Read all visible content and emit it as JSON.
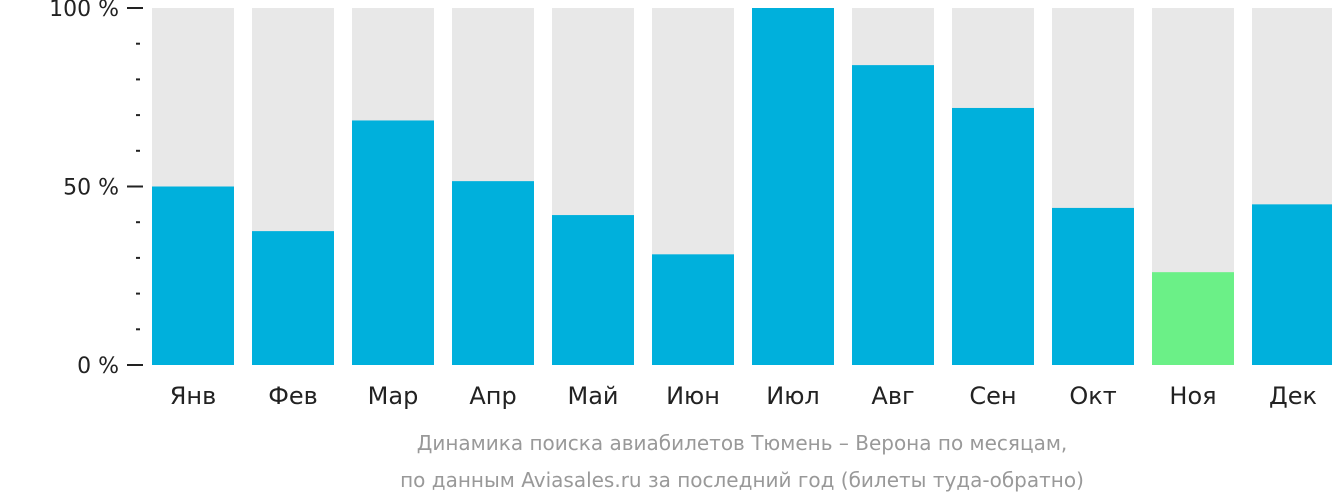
{
  "chart_data": {
    "type": "bar",
    "categories": [
      "Янв",
      "Фев",
      "Мар",
      "Апр",
      "Май",
      "Июн",
      "Июл",
      "Авг",
      "Сен",
      "Окт",
      "Ноя",
      "Дек"
    ],
    "values": [
      50,
      37.5,
      68.5,
      51.5,
      42,
      31,
      100,
      84,
      72,
      44,
      26,
      45
    ],
    "ylim": [
      0,
      100
    ],
    "y_ticks": [
      {
        "value": 100,
        "label": "100 %"
      },
      {
        "value": 50,
        "label": "50 %"
      },
      {
        "value": 0,
        "label": "0 %"
      }
    ],
    "highlight_index": 10,
    "colors": {
      "bar": "#00b0dc",
      "highlight": "#6bf087",
      "track": "#e8e8e8",
      "axis": "#222222",
      "caption": "#999999"
    },
    "caption_lines": [
      "Динамика поиска авиабилетов Тюмень – Верона по месяцам,",
      "по данным Aviasales.ru за последний год (билеты туда-обратно)"
    ]
  }
}
